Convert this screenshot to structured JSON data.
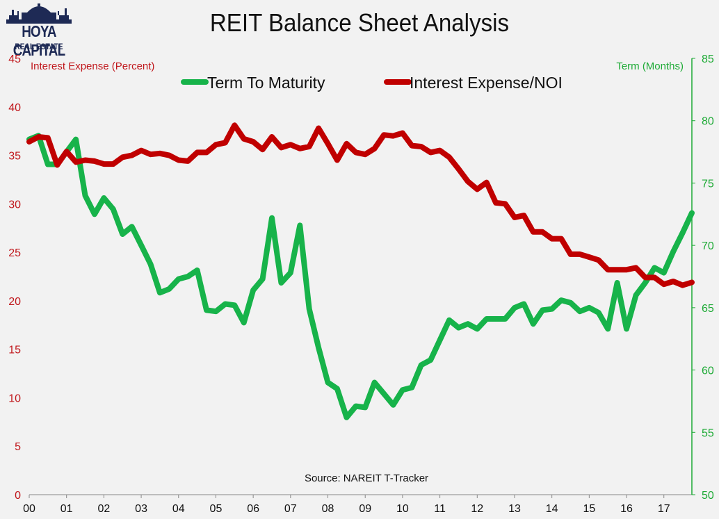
{
  "title": "REIT Balance Sheet Analysis",
  "logo": {
    "line1": "HOYA CAPITAL",
    "line2": "REAL ESTATE"
  },
  "colors": {
    "left_axis": "#c0161b",
    "right_axis": "#1daa35",
    "series_term": "#17b34a",
    "series_interest": "#c00000",
    "background": "#f2f2f2"
  },
  "chart_data": {
    "type": "line",
    "title": "REIT Balance Sheet Analysis",
    "source": "Source: NAREIT T-Tracker",
    "xlabel": "",
    "x_ticks": [
      "00",
      "01",
      "02",
      "03",
      "04",
      "05",
      "06",
      "07",
      "08",
      "09",
      "10",
      "11",
      "12",
      "13",
      "14",
      "15",
      "16",
      "17"
    ],
    "y_left": {
      "label": "Interest Expense (Percent)",
      "range": [
        0,
        45
      ],
      "ticks": [
        0,
        5,
        10,
        15,
        20,
        25,
        30,
        35,
        40,
        45
      ]
    },
    "y_right": {
      "label": "Term (Months)",
      "range": [
        50,
        85
      ],
      "ticks": [
        50,
        55,
        60,
        65,
        70,
        75,
        80,
        85
      ]
    },
    "legend": {
      "placement": "top-center"
    },
    "grid": false,
    "series": [
      {
        "name": "Term To Maturity",
        "axis": "right",
        "color": "#17b34a",
        "x": [
          2000.0,
          2000.25,
          2000.5,
          2000.75,
          2001.0,
          2001.25,
          2001.5,
          2001.75,
          2002.0,
          2002.25,
          2002.5,
          2002.75,
          2003.0,
          2003.25,
          2003.5,
          2003.75,
          2004.0,
          2004.25,
          2004.5,
          2004.75,
          2005.0,
          2005.25,
          2005.5,
          2005.75,
          2006.0,
          2006.25,
          2006.5,
          2006.75,
          2007.0,
          2007.25,
          2007.5,
          2007.75,
          2008.0,
          2008.25,
          2008.5,
          2008.75,
          2009.0,
          2009.25,
          2009.5,
          2009.75,
          2010.0,
          2010.25,
          2010.5,
          2010.75,
          2011.0,
          2011.25,
          2011.5,
          2011.75,
          2012.0,
          2012.25,
          2012.5,
          2012.75,
          2013.0,
          2013.25,
          2013.5,
          2013.75,
          2014.0,
          2014.25,
          2014.5,
          2014.75,
          2015.0,
          2015.25,
          2015.5,
          2015.75,
          2016.0,
          2016.25,
          2016.5,
          2016.75,
          2017.0,
          2017.25,
          2017.5,
          2017.75
        ],
        "values": [
          78.5,
          78.8,
          76.5,
          76.5,
          77.5,
          78.5,
          74.0,
          72.5,
          73.8,
          72.9,
          70.9,
          71.5,
          70.0,
          68.5,
          66.2,
          66.5,
          67.3,
          67.5,
          68.0,
          64.8,
          64.7,
          65.3,
          65.2,
          63.8,
          66.4,
          67.3,
          72.2,
          67.0,
          67.8,
          71.6,
          64.9,
          61.8,
          59.0,
          58.5,
          56.2,
          57.1,
          57.0,
          59.0,
          58.1,
          57.2,
          58.4,
          58.6,
          60.4,
          60.8,
          62.4,
          64.0,
          63.4,
          63.7,
          63.3,
          64.1,
          64.1,
          64.1,
          65.0,
          65.3,
          63.7,
          64.8,
          64.9,
          65.6,
          65.4,
          64.7,
          65.0,
          64.6,
          63.3,
          67.0,
          63.3,
          66.0,
          67.0,
          68.2,
          67.8,
          69.5,
          71.0,
          72.6
        ]
      },
      {
        "name": "Interest Expense/NOI",
        "axis": "left",
        "color": "#c00000",
        "x": [
          2000.0,
          2000.25,
          2000.5,
          2000.75,
          2001.0,
          2001.25,
          2001.5,
          2001.75,
          2002.0,
          2002.25,
          2002.5,
          2002.75,
          2003.0,
          2003.25,
          2003.5,
          2003.75,
          2004.0,
          2004.25,
          2004.5,
          2004.75,
          2005.0,
          2005.25,
          2005.5,
          2005.75,
          2006.0,
          2006.25,
          2006.5,
          2006.75,
          2007.0,
          2007.25,
          2007.5,
          2007.75,
          2008.0,
          2008.25,
          2008.5,
          2008.75,
          2009.0,
          2009.25,
          2009.5,
          2009.75,
          2010.0,
          2010.25,
          2010.5,
          2010.75,
          2011.0,
          2011.25,
          2011.5,
          2011.75,
          2012.0,
          2012.25,
          2012.5,
          2012.75,
          2013.0,
          2013.25,
          2013.5,
          2013.75,
          2014.0,
          2014.25,
          2014.5,
          2014.75,
          2015.0,
          2015.25,
          2015.5,
          2015.75,
          2016.0,
          2016.25,
          2016.5,
          2016.75,
          2017.0,
          2017.25,
          2017.5,
          2017.75
        ],
        "values": [
          36.4,
          36.9,
          36.8,
          34.0,
          35.4,
          34.3,
          34.5,
          34.4,
          34.1,
          34.1,
          34.8,
          35.0,
          35.5,
          35.1,
          35.2,
          35.0,
          34.5,
          34.4,
          35.3,
          35.3,
          36.1,
          36.3,
          38.1,
          36.7,
          36.4,
          35.6,
          36.9,
          35.8,
          36.1,
          35.7,
          35.9,
          37.8,
          36.2,
          34.5,
          36.2,
          35.3,
          35.1,
          35.7,
          37.1,
          37.0,
          37.3,
          36.0,
          35.9,
          35.3,
          35.5,
          34.8,
          33.6,
          32.3,
          31.5,
          32.2,
          30.1,
          30.0,
          28.6,
          28.8,
          27.1,
          27.1,
          26.4,
          26.4,
          24.8,
          24.8,
          24.5,
          24.2,
          23.2,
          23.2,
          23.2,
          23.4,
          22.4,
          22.4,
          21.7,
          22.0,
          21.6,
          21.9
        ]
      }
    ]
  }
}
